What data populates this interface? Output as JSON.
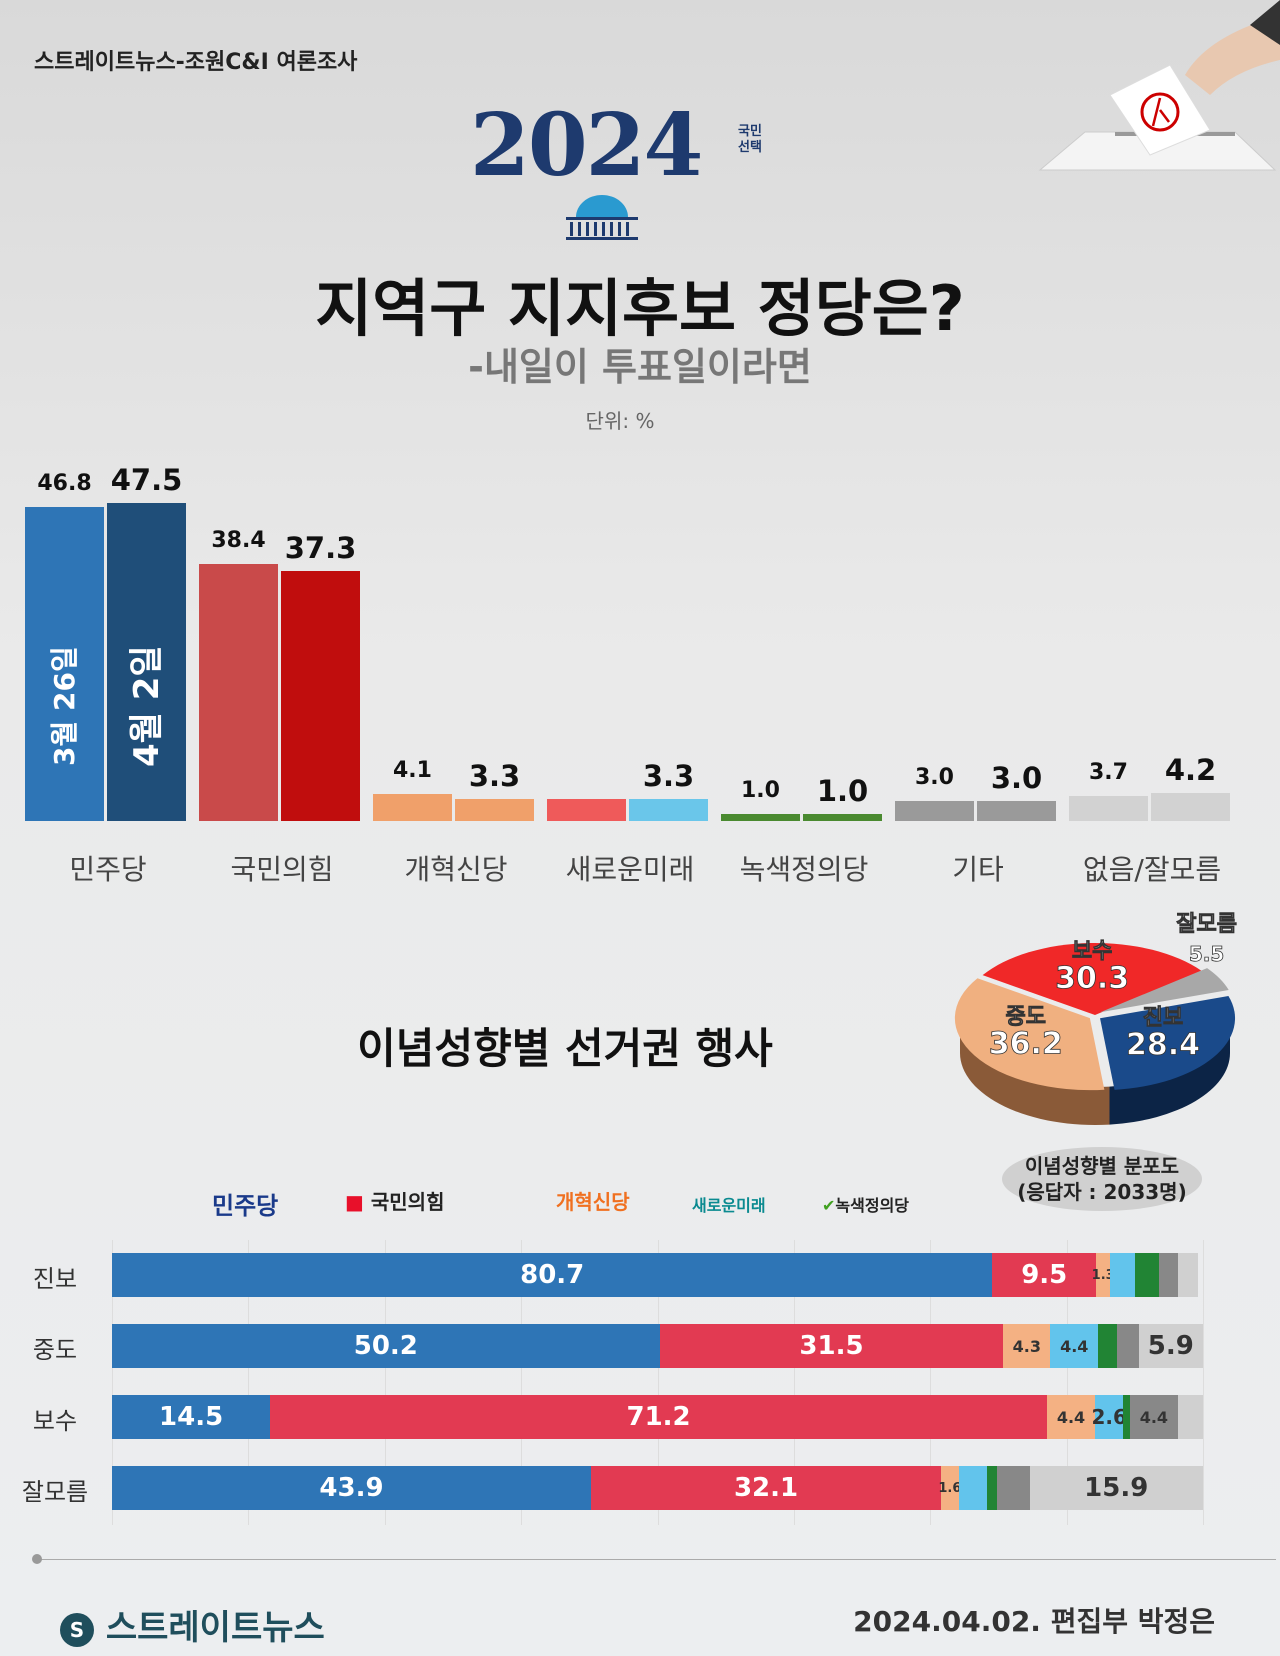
{
  "header": {
    "source": "스트레이트뉴스-조원C&I 여론조사",
    "logo_year": "2024",
    "logo_sub": "국민\n선택",
    "title": "지역구 지지후보 정당은?",
    "subtitle": "-내일이 투표일이라면",
    "unit": "단위: %"
  },
  "chart_data": [
    {
      "type": "bar",
      "categories": [
        "민주당",
        "국민의힘",
        "개혁신당",
        "새로운미래",
        "녹색정의당",
        "기타",
        "없음/잘모름"
      ],
      "series": [
        {
          "name": "3월 26일",
          "values": [
            46.8,
            38.4,
            4.1,
            null,
            1.0,
            3.0,
            3.7
          ]
        },
        {
          "name": "4월 2일",
          "values": [
            47.5,
            37.3,
            3.3,
            3.3,
            1.0,
            3.0,
            4.2
          ]
        }
      ],
      "colors": {
        "3월 26일": [
          "#2e75b6",
          "#c94a4a",
          "#f0a06a",
          "#ef5a5a",
          "#4a8a30",
          "#9a9a9a",
          "#d2d2d2"
        ],
        "4월 2일": [
          "#1f4e79",
          "#c00d0d",
          "#f0a06a",
          "#6ac6ea",
          "#4a8a30",
          "#9a9a9a",
          "#d2d2d2"
        ]
      },
      "ylim": [
        0,
        50
      ]
    },
    {
      "type": "pie",
      "title": "이념성향별 분포도",
      "caption": "(응답자 : 2033명)",
      "labels": [
        "진보",
        "중도",
        "보수",
        "잘모름"
      ],
      "values": [
        28.4,
        36.2,
        30.3,
        5.5
      ],
      "colors": [
        "#1a4a8a",
        "#f0b080",
        "#f02828",
        "#a8a8a8"
      ]
    },
    {
      "type": "stacked-bar",
      "title": "이념성향별 선거권 행사",
      "legend": [
        "민주당",
        "국민의힘",
        "개혁신당",
        "새로운미래",
        "녹색정의당"
      ],
      "categories": [
        "진보",
        "중도",
        "보수",
        "잘모름"
      ],
      "segment_colors": [
        "#2e75b6",
        "#e23a52",
        "#f4b183",
        "#62c4ec",
        "#218434",
        "#888888",
        "#d0d0d0"
      ],
      "rows": [
        [
          80.7,
          9.5,
          1.3,
          2.3,
          2.2,
          1.7,
          1.8
        ],
        [
          50.2,
          31.5,
          4.3,
          4.4,
          1.7,
          2.0,
          5.9
        ],
        [
          14.5,
          71.2,
          4.4,
          2.6,
          0.6,
          4.4,
          2.3
        ],
        [
          43.9,
          32.1,
          1.6,
          2.6,
          0.9,
          3.0,
          15.9
        ]
      ],
      "labels": [
        [
          "80.7",
          "9.5",
          "1.3",
          "",
          "",
          "",
          ""
        ],
        [
          "50.2",
          "31.5",
          "4.3",
          "4.4",
          "",
          "",
          "5.9"
        ],
        [
          "14.5",
          "71.2",
          "4.4",
          "2.6",
          "",
          "4.4",
          ""
        ],
        [
          "43.9",
          "32.1",
          "1.6",
          "",
          "",
          "",
          "15.9"
        ]
      ],
      "xlim": [
        0,
        100
      ]
    }
  ],
  "footer": {
    "brand": "스트레이트뉴스",
    "credit": "2024.04.02. 편집부 박정은"
  }
}
